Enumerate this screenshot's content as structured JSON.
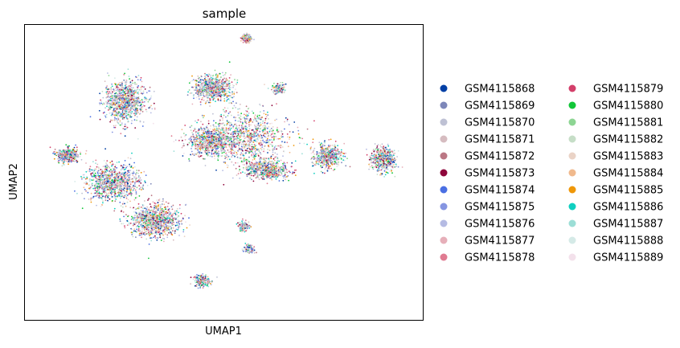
{
  "chart_data": {
    "type": "scatter",
    "title": "sample",
    "xlabel": "UMAP1",
    "ylabel": "UMAP2",
    "grid": false,
    "ticks": false,
    "legend_position": "right, two columns",
    "xlim": [
      -10,
      18
    ],
    "ylim": [
      -10,
      12
    ],
    "series": [
      {
        "name": "GSM4115868",
        "color": "#023fa5"
      },
      {
        "name": "GSM4115869",
        "color": "#7d87b9"
      },
      {
        "name": "GSM4115870",
        "color": "#bec1d4"
      },
      {
        "name": "GSM4115871",
        "color": "#d6bcc0"
      },
      {
        "name": "GSM4115872",
        "color": "#bb7784"
      },
      {
        "name": "GSM4115873",
        "color": "#8e063b"
      },
      {
        "name": "GSM4115874",
        "color": "#4a6fe3"
      },
      {
        "name": "GSM4115875",
        "color": "#8595e1"
      },
      {
        "name": "GSM4115876",
        "color": "#b5bbe3"
      },
      {
        "name": "GSM4115877",
        "color": "#e6afb9"
      },
      {
        "name": "GSM4115878",
        "color": "#e07b91"
      },
      {
        "name": "GSM4115879",
        "color": "#d33f6a"
      },
      {
        "name": "GSM4115880",
        "color": "#11c638"
      },
      {
        "name": "GSM4115881",
        "color": "#8dd593"
      },
      {
        "name": "GSM4115882",
        "color": "#c6dec7"
      },
      {
        "name": "GSM4115883",
        "color": "#ead3c6"
      },
      {
        "name": "GSM4115884",
        "color": "#f0b98d"
      },
      {
        "name": "GSM4115885",
        "color": "#ef9708"
      },
      {
        "name": "GSM4115886",
        "color": "#0fcfc0"
      },
      {
        "name": "GSM4115887",
        "color": "#9cded6"
      },
      {
        "name": "GSM4115888",
        "color": "#d5eae7"
      },
      {
        "name": "GSM4115889",
        "color": "#f3e1eb"
      }
    ],
    "clusters": [
      {
        "cx": -3.0,
        "cy": 6.3,
        "rx": 1.6,
        "ry": 1.7,
        "density": 1.0
      },
      {
        "cx": -3.8,
        "cy": 0.2,
        "rx": 2.1,
        "ry": 1.5,
        "density": 1.0
      },
      {
        "cx": -0.8,
        "cy": -2.6,
        "rx": 1.9,
        "ry": 1.3,
        "density": 1.0
      },
      {
        "cx": 5.6,
        "cy": 3.6,
        "rx": 3.2,
        "ry": 2.3,
        "density": 1.0
      },
      {
        "cx": 3.2,
        "cy": 7.3,
        "rx": 1.4,
        "ry": 1.0,
        "density": 0.8
      },
      {
        "cx": 3.0,
        "cy": 3.3,
        "rx": 2.0,
        "ry": 1.2,
        "density": 0.7
      },
      {
        "cx": 7.0,
        "cy": 1.2,
        "rx": 1.7,
        "ry": 0.8,
        "density": 0.6
      },
      {
        "cx": 11.3,
        "cy": 2.2,
        "rx": 1.1,
        "ry": 1.0,
        "density": 0.5
      },
      {
        "cx": 15.2,
        "cy": 2.0,
        "rx": 1.0,
        "ry": 1.0,
        "density": 0.5
      },
      {
        "cx": -7.0,
        "cy": 2.3,
        "rx": 0.8,
        "ry": 0.6,
        "density": 0.4
      },
      {
        "cx": 5.6,
        "cy": 11.0,
        "rx": 0.35,
        "ry": 0.35,
        "density": 0.15
      },
      {
        "cx": 2.5,
        "cy": -7.1,
        "rx": 0.6,
        "ry": 0.5,
        "density": 0.15
      },
      {
        "cx": 5.4,
        "cy": -3.0,
        "rx": 0.4,
        "ry": 0.35,
        "density": 0.1
      },
      {
        "cx": 5.8,
        "cy": -4.7,
        "rx": 0.4,
        "ry": 0.3,
        "density": 0.1
      },
      {
        "cx": 7.8,
        "cy": 7.2,
        "rx": 0.5,
        "ry": 0.4,
        "density": 0.1
      }
    ]
  }
}
